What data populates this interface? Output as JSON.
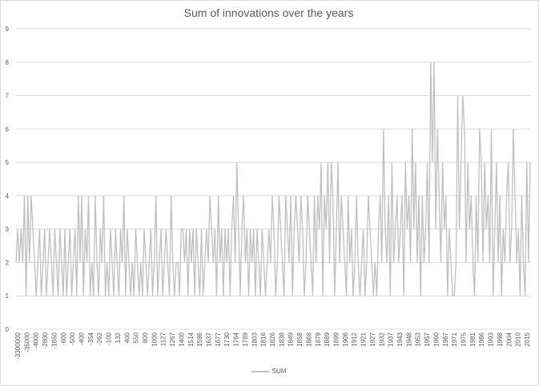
{
  "chart_data": {
    "type": "line",
    "title": "Sum of innovations over the years",
    "xlabel": "",
    "ylabel": "",
    "ylim": [
      0,
      9
    ],
    "yticks": [
      0,
      1,
      2,
      3,
      4,
      5,
      6,
      7,
      8,
      9
    ],
    "grid": true,
    "legend_position": "bottom",
    "x_tick_labels": [
      "-3300000",
      "-35000",
      "-4000",
      "-2800",
      "-1650",
      "-600",
      "-500",
      "-400",
      "-354",
      "-262",
      "-100",
      "132",
      "400",
      "550",
      "800",
      "1000",
      "1127",
      "1267",
      "1400",
      "1514",
      "1596",
      "1637",
      "1677",
      "1730",
      "1764",
      "1789",
      "1803",
      "1816",
      "1826",
      "1838",
      "1849",
      "1858",
      "1868",
      "1879",
      "1889",
      "1899",
      "1906",
      "1912",
      "1921",
      "1927",
      "1932",
      "1937",
      "1943",
      "1948",
      "1953",
      "1957",
      "1960",
      "1967",
      "1971",
      "1975",
      "1981",
      "1986",
      "1993",
      "1998",
      "2004",
      "2010",
      "2015"
    ],
    "series": [
      {
        "name": "SUM",
        "color": "#bfbfbf",
        "values": [
          2,
          3,
          2,
          3,
          2,
          4,
          1,
          4,
          2,
          4,
          3,
          2,
          1,
          2,
          3,
          1,
          2,
          3,
          1,
          2,
          3,
          2,
          1,
          3,
          2,
          1,
          3,
          2,
          1,
          3,
          1,
          2,
          3,
          1,
          2,
          3,
          1,
          4,
          2,
          4,
          1,
          3,
          2,
          4,
          1,
          2,
          1,
          4,
          2,
          1,
          3,
          2,
          4,
          1,
          2,
          1,
          3,
          2,
          1,
          3,
          2,
          1,
          3,
          2,
          4,
          1,
          3,
          2,
          1,
          2,
          1,
          3,
          2,
          1,
          2,
          1,
          3,
          2,
          1,
          2,
          3,
          1,
          2,
          4,
          1,
          2,
          3,
          1,
          2,
          3,
          2,
          1,
          4,
          2,
          1,
          2,
          2,
          1,
          3,
          3,
          2,
          3,
          1,
          3,
          2,
          3,
          1,
          3,
          2,
          1,
          3,
          1,
          2,
          3,
          2,
          4,
          3,
          2,
          3,
          1,
          4,
          2,
          3,
          1,
          3,
          2,
          3,
          1,
          3,
          4,
          2,
          5,
          3,
          1,
          3,
          4,
          2,
          3,
          1,
          3,
          2,
          3,
          1,
          3,
          2,
          1,
          3,
          2,
          1,
          2,
          3,
          2,
          4,
          3,
          1,
          2,
          4,
          3,
          2,
          1,
          4,
          3,
          2,
          4,
          1,
          3,
          4,
          3,
          2,
          4,
          3,
          1,
          2,
          4,
          3,
          2,
          1,
          4,
          2,
          4,
          3,
          5,
          1,
          4,
          3,
          5,
          2,
          5,
          4,
          1,
          3,
          5,
          2,
          4,
          3,
          2,
          1,
          4,
          2,
          3,
          1,
          2,
          4,
          2,
          1,
          2,
          3,
          1,
          2,
          4,
          3,
          2,
          1,
          2,
          1,
          3,
          4,
          2,
          6,
          3,
          2,
          4,
          1,
          5,
          2,
          3,
          4,
          2,
          3,
          4,
          1,
          5,
          3,
          4,
          2,
          6,
          3,
          5,
          2,
          4,
          1,
          4,
          2,
          3,
          5,
          2,
          8,
          5,
          8,
          3,
          6,
          4,
          2,
          5,
          3,
          4,
          1,
          3,
          2,
          1,
          1,
          2,
          7,
          3,
          5,
          7,
          6,
          2,
          5,
          3,
          4,
          2,
          1,
          4,
          2,
          6,
          5,
          2,
          5,
          3,
          4,
          2,
          6,
          1,
          3,
          5,
          2,
          4,
          1,
          3,
          2,
          4,
          5,
          2,
          3,
          6,
          4,
          2,
          3,
          1,
          4,
          2,
          1,
          5,
          2,
          5
        ]
      }
    ]
  }
}
